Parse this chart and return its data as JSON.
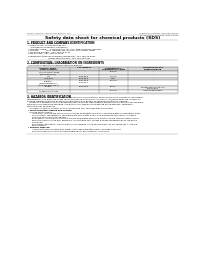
{
  "bg_color": "#ffffff",
  "header_left": "Product Name: Lithium Ion Battery Cell",
  "header_right_line1": "Substance number: 999-999-99999",
  "header_right_line2": "Established / Revision: Dec.7.2010",
  "title": "Safety data sheet for chemical products (SDS)",
  "section1_title": "1. PRODUCT AND COMPANY IDENTIFICATION",
  "section1_lines": [
    " • Product name: Lithium Ion Battery Cell",
    " • Product code: Cylindrical-type cell",
    "     (UR18650U, UR18650E, UR18650A)",
    " • Company name:     Sanyo Electric Co., Ltd., Mobile Energy Company",
    " • Address:           2001  Kamiosakan, Sumoto-City, Hyogo, Japan",
    " • Telephone number:  +81-799-26-4111",
    " • Fax number:  +81-799-26-4123",
    " • Emergency telephone number (Weekdays): +81-799-26-3962",
    "                                  (Night and holidays): +81-799-26-4101"
  ],
  "section2_title": "2. COMPOSITION / INFORMATION ON INGREDIENTS",
  "section2_intro": " • Substance or preparation: Preparation",
  "section2_sub": " • Information about the chemical nature of product:",
  "table_col_starts": [
    3,
    58,
    95,
    133
  ],
  "table_col_ends": [
    58,
    95,
    133,
    197
  ],
  "table_header_sub": "Several names",
  "table_headers": [
    "Chemical name /",
    "CAS number",
    "Concentration /",
    "Classification and"
  ],
  "table_headers2": [
    "Several names",
    "",
    "Concentration range",
    "hazard labeling"
  ],
  "table_rows": [
    [
      "Lithium cobalt oxide\n(LiMnxCoyNizO2)",
      "-",
      "30-50%",
      "-"
    ],
    [
      "Iron",
      "7439-89-6",
      "15-25%",
      "-"
    ],
    [
      "Aluminum",
      "7429-90-5",
      "2-5%",
      "-"
    ],
    [
      "Graphite\n(Mixed graphite-1)\n(All-flake graphite-1)",
      "7782-42-5\n7782-44-7",
      "10-25%",
      "-"
    ],
    [
      "Copper",
      "7440-50-8",
      "5-15%",
      "Sensitization of the skin\ngroup No.2"
    ],
    [
      "Organic electrolyte",
      "-",
      "10-20%",
      "Inflammable liquid"
    ]
  ],
  "section3_title": "3. HAZARDS IDENTIFICATION",
  "section3_lines": [
    "For the battery cell, chemical materials are stored in a hermetically sealed metal case, designed to withstand",
    "temperatures and pressure-stress conditions during normal use. As a result, during normal use, there is no",
    "physical danger of ignition or explosion and there is no danger of hazardous materials leakage.",
    "    However, if exposed to a fire, added mechanical shocks, decomposed, written electric without any measure,",
    "the gas inside cannot be operated. The battery cell case will be breached of the portions, hazardous",
    "materials may be released.",
    "    Moreover, if heated strongly by the surrounding fire, solid gas may be emitted."
  ],
  "section3_bullet1": " • Most important hazard and effects:",
  "section3_human": "    Human health effects:",
  "section3_human_lines": [
    "        Inhalation: The release of the electrolyte has an anaesthesia action and stimulates in respiratory tract.",
    "        Skin contact: The release of the electrolyte stimulates a skin. The electrolyte skin contact causes a",
    "        sore and stimulation on the skin.",
    "        Eye contact: The release of the electrolyte stimulates eyes. The electrolyte eye contact causes a sore",
    "        and stimulation on the eye. Especially, a substance that causes a strong inflammation of the eye is",
    "        contained.",
    "        Environmental effects: Since a battery cell remains in the environment, do not throw out it into the",
    "        environment."
  ],
  "section3_specific": " • Specific hazards:",
  "section3_specific_lines": [
    "        If the electrolyte contacts with water, it will generate detrimental hydrogen fluoride.",
    "        Since the seal electrolyte is inflammable liquid, do not bring close to fire."
  ]
}
